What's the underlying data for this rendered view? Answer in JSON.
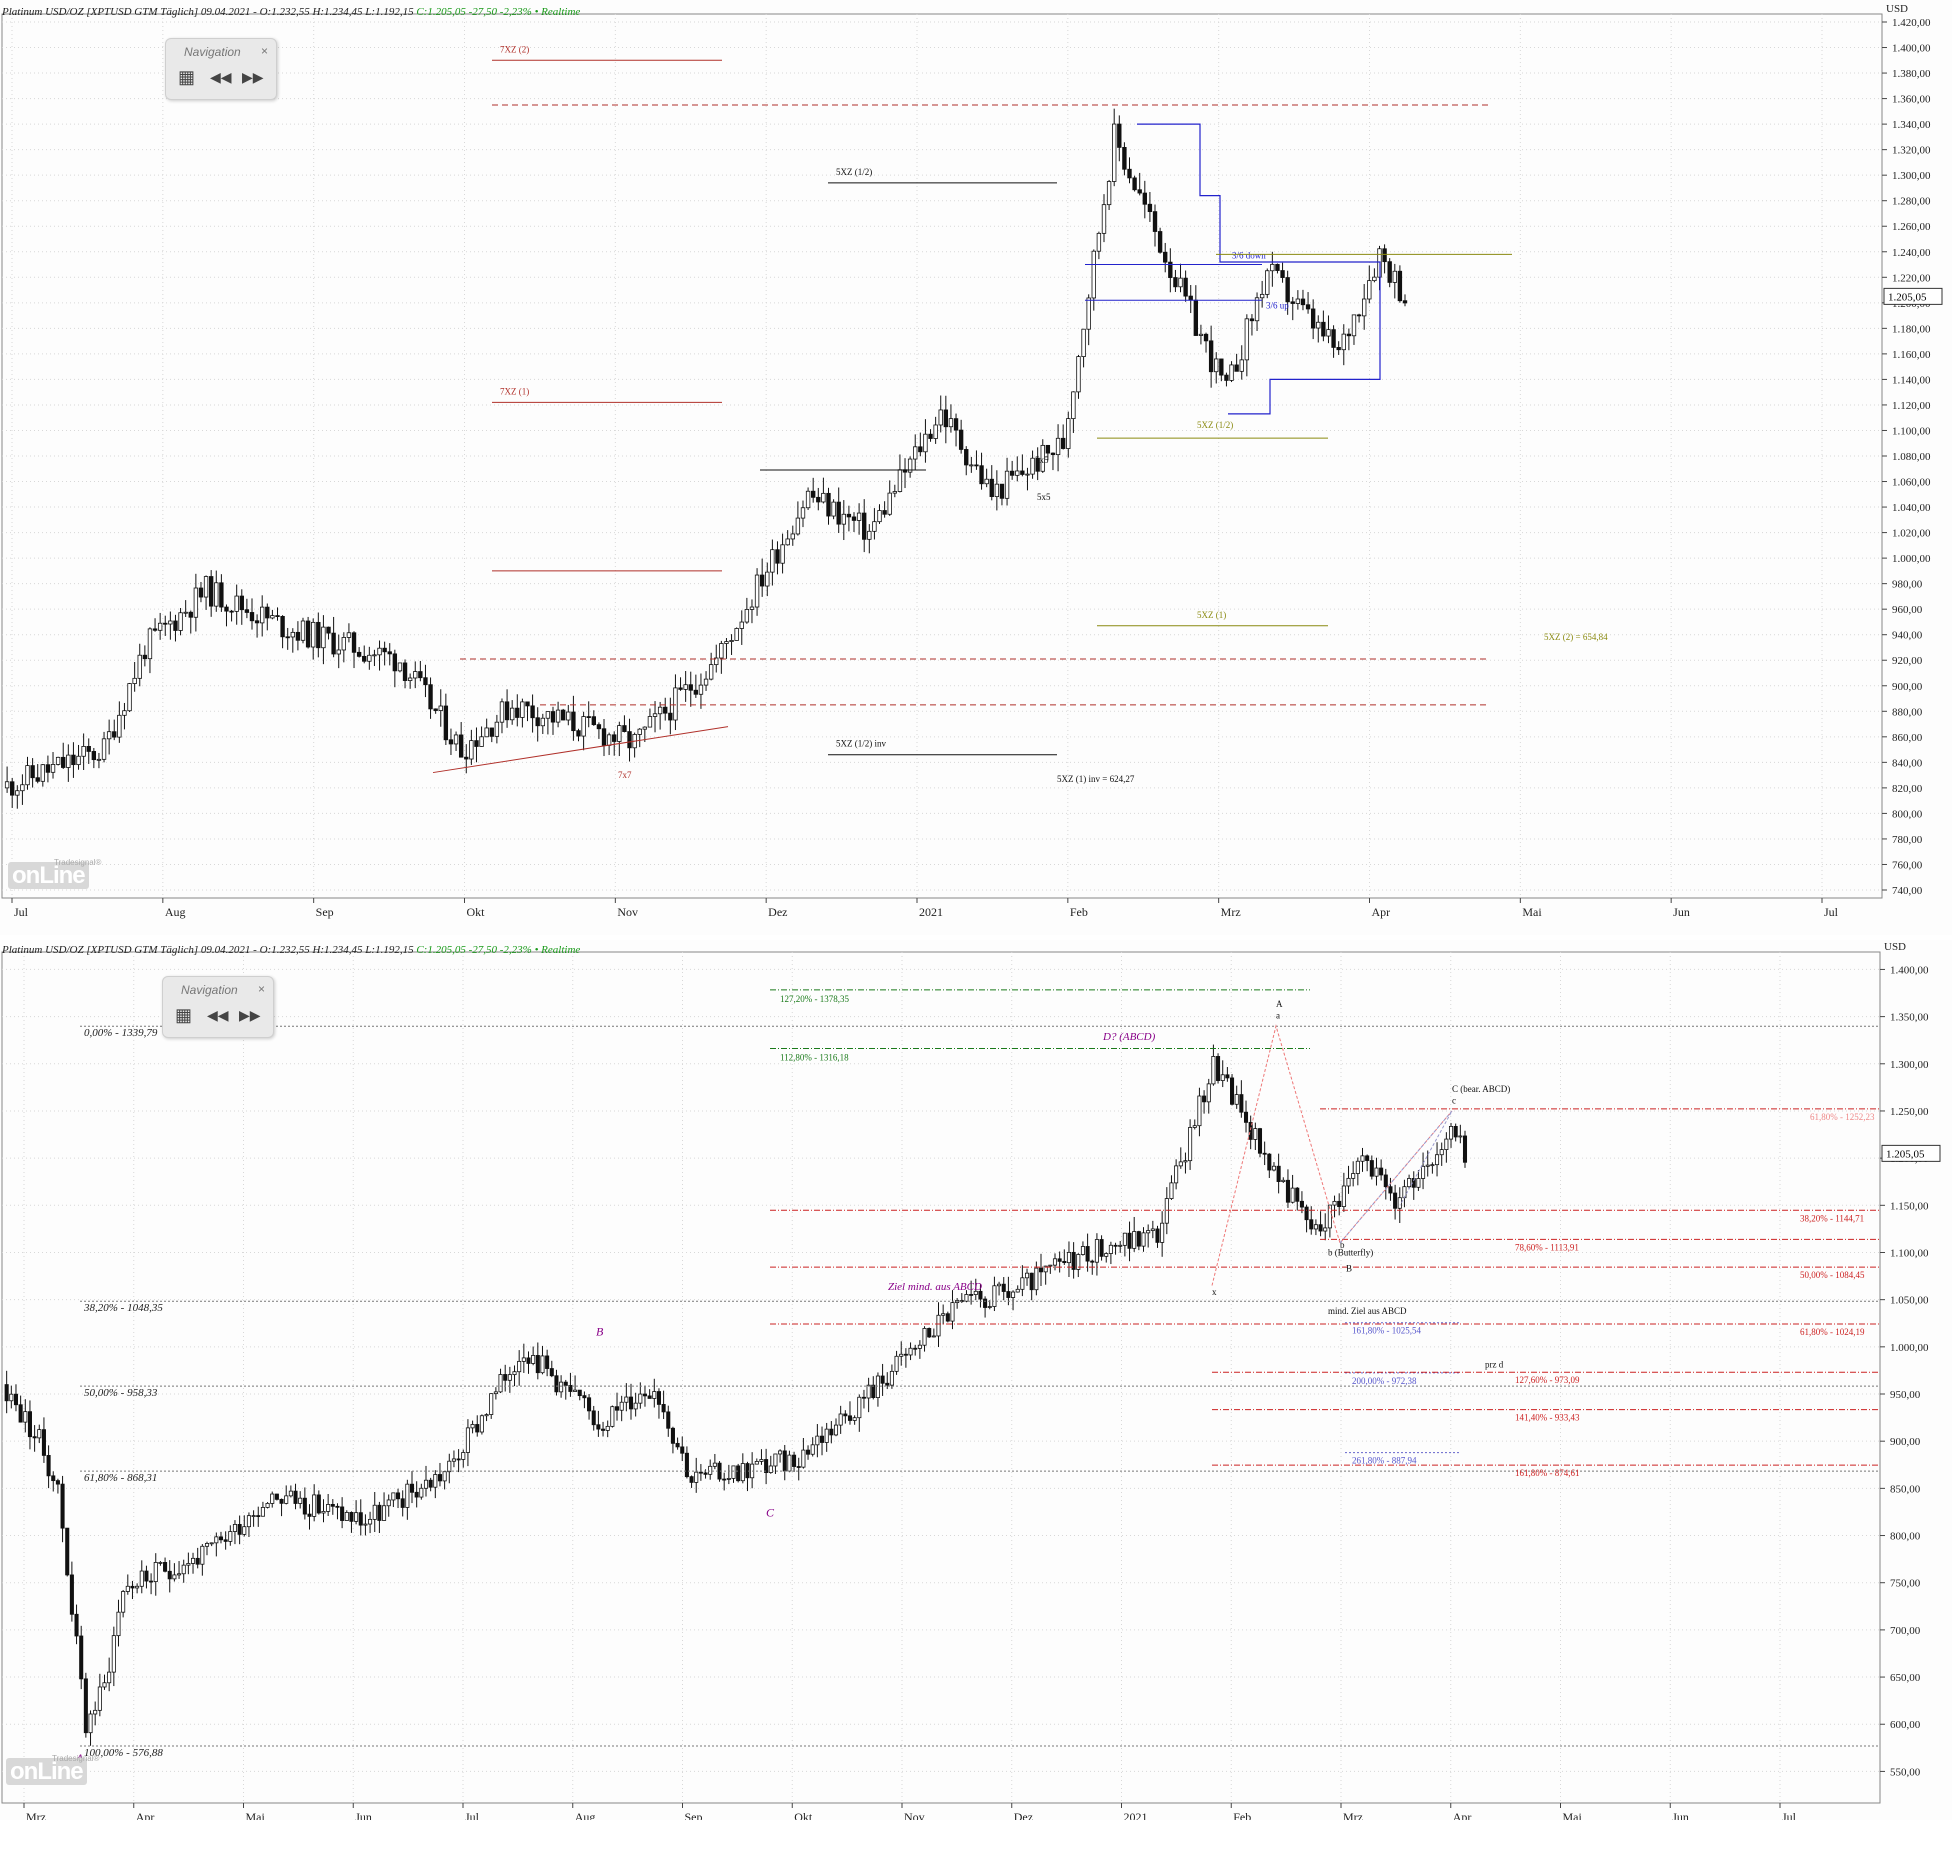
{
  "header": {
    "text": "Platinum USD/OZ [XPTUSD GTM Täglich] 09.04.2021 - O:1.232,55 H:1.234,45 L:1.192,15 ",
    "change": "C:1.205,05 -27,50 -2,23% • Realtime"
  },
  "navigation": {
    "title": "Navigation",
    "close": "×",
    "grid": "▦",
    "back": "◀◀",
    "forward": "▶▶"
  },
  "logo": {
    "main": "onLine",
    "small": "Tradesignal®"
  },
  "colors": {
    "up": "#ffffff",
    "down": "#111111",
    "red": "#b0302a",
    "blue": "#2222cc",
    "olive": "#8a8a10",
    "green": "#1a7a1a",
    "purple": "#880088"
  },
  "chart_data": [
    {
      "type": "candlestick",
      "title": "Platinum USD/OZ [XPTUSD GTM Täglich] 09.04.2021",
      "currency": "USD",
      "last_price": "1.205,05",
      "ylim": [
        740,
        1420
      ],
      "y_ticks": [
        "1.420,00",
        "1.400,00",
        "1.380,00",
        "1.360,00",
        "1.340,00",
        "1.320,00",
        "1.300,00",
        "1.280,00",
        "1.260,00",
        "1.240,00",
        "1.220,00",
        "1.200,00",
        "1.180,00",
        "1.160,00",
        "1.140,00",
        "1.120,00",
        "1.100,00",
        "1.080,00",
        "1.060,00",
        "1.040,00",
        "1.020,00",
        "1.000,00",
        "980,00",
        "960,00",
        "940,00",
        "920,00",
        "900,00",
        "880,00",
        "860,00",
        "840,00",
        "820,00",
        "800,00",
        "780,00",
        "760,00",
        "740,00"
      ],
      "x_ticks": [
        "Jul",
        "Aug",
        "Sep",
        "Okt",
        "Nov",
        "Dez",
        "2021",
        "Feb",
        "Mrz",
        "Apr",
        "Mai",
        "Jun",
        "Jul"
      ],
      "anchors": [
        {
          "t": 0,
          "p": 820
        },
        {
          "t": 20,
          "p": 850
        },
        {
          "t": 28,
          "p": 930
        },
        {
          "t": 40,
          "p": 975
        },
        {
          "t": 56,
          "p": 945
        },
        {
          "t": 78,
          "p": 920
        },
        {
          "t": 90,
          "p": 850
        },
        {
          "t": 100,
          "p": 885
        },
        {
          "t": 124,
          "p": 855
        },
        {
          "t": 140,
          "p": 920
        },
        {
          "t": 158,
          "p": 1050
        },
        {
          "t": 170,
          "p": 1020
        },
        {
          "t": 184,
          "p": 1115
        },
        {
          "t": 194,
          "p": 1050
        },
        {
          "t": 208,
          "p": 1090
        },
        {
          "t": 218,
          "p": 1330
        },
        {
          "t": 232,
          "p": 1200
        },
        {
          "t": 240,
          "p": 1130
        },
        {
          "t": 248,
          "p": 1225
        },
        {
          "t": 262,
          "p": 1160
        },
        {
          "t": 270,
          "p": 1240
        },
        {
          "t": 275,
          "p": 1205
        }
      ],
      "annotations": [
        {
          "text": "7XZ (2)",
          "price": 1390,
          "x0": 492,
          "x1": 722,
          "style": "red-solid"
        },
        {
          "text": "",
          "price": 1355,
          "x0": 492,
          "x1": 1490,
          "style": "red-dashed"
        },
        {
          "text": "5XZ (1/2)",
          "price": 1294,
          "x0": 828,
          "x1": 1057,
          "style": "black-solid"
        },
        {
          "text": "3/6 down",
          "price": 1230,
          "x0": 1085,
          "x1": 1262,
          "style": "blue-solid"
        },
        {
          "text": "3/6 up",
          "price": 1202,
          "x0": 1085,
          "x1": 1262,
          "style": "blue-solid"
        },
        {
          "text": "7XZ (1)",
          "price": 1122,
          "x0": 492,
          "x1": 722,
          "style": "red-solid"
        },
        {
          "text": "5XZ (1/2)",
          "price": 1094,
          "x0": 1097,
          "x1": 1328,
          "style": "olive-solid"
        },
        {
          "text": "5x5",
          "price": 1069,
          "x0": 760,
          "x1": 926,
          "style": "black-solid"
        },
        {
          "text": "",
          "price": 990,
          "x0": 492,
          "x1": 722,
          "style": "red-solid"
        },
        {
          "text": "5XZ (1)",
          "price": 947,
          "x0": 1097,
          "x1": 1328,
          "style": "olive-solid"
        },
        {
          "text": "5XZ (2) = 654,84",
          "price": 0,
          "x0": 0,
          "x1": 0,
          "style": "label"
        },
        {
          "text": "",
          "price": 921,
          "x0": 460,
          "x1": 1490,
          "style": "red-dashed"
        },
        {
          "text": "",
          "price": 885,
          "x0": 540,
          "x1": 1490,
          "style": "red-dashed"
        },
        {
          "text": "5XZ (1/2) inv",
          "price": 846,
          "x0": 828,
          "x1": 1057,
          "style": "black-solid"
        },
        {
          "text": "5XZ (1) inv = 624,27",
          "price": 0,
          "x0": 0,
          "x1": 0,
          "style": "label"
        },
        {
          "text": "5x5",
          "price": 0,
          "x0": 0,
          "x1": 0,
          "style": "label"
        },
        {
          "text": "7x7",
          "price": 0,
          "x0": 0,
          "x1": 0,
          "style": "label"
        }
      ]
    },
    {
      "type": "candlestick",
      "title": "Platinum USD/OZ [XPTUSD GTM Täglich] 09.04.2021",
      "currency": "USD",
      "last_price": "1.205,05",
      "ylim": [
        525,
        1410
      ],
      "y_ticks": [
        "1.400,00",
        "1.350,00",
        "1.300,00",
        "1.250,00",
        "1.200,00",
        "1.150,00",
        "1.100,00",
        "1.050,00",
        "1.000,00",
        "950,00",
        "900,00",
        "850,00",
        "800,00",
        "750,00",
        "700,00",
        "650,00",
        "600,00",
        "550,00"
      ],
      "x_ticks": [
        "Mrz",
        "Apr",
        "Mai",
        "Jun",
        "Jul",
        "Aug",
        "Sep",
        "Okt",
        "Nov",
        "Dez",
        "2021",
        "Feb",
        "Mrz",
        "Apr",
        "Mai",
        "Jun",
        "Jul"
      ],
      "anchors": [
        {
          "t": 0,
          "p": 960
        },
        {
          "t": 8,
          "p": 900
        },
        {
          "t": 12,
          "p": 850
        },
        {
          "t": 18,
          "p": 600
        },
        {
          "t": 22,
          "p": 640
        },
        {
          "t": 26,
          "p": 745
        },
        {
          "t": 44,
          "p": 780
        },
        {
          "t": 58,
          "p": 845
        },
        {
          "t": 78,
          "p": 815
        },
        {
          "t": 96,
          "p": 870
        },
        {
          "t": 112,
          "p": 1000
        },
        {
          "t": 128,
          "p": 920
        },
        {
          "t": 140,
          "p": 960
        },
        {
          "t": 148,
          "p": 860
        },
        {
          "t": 170,
          "p": 880
        },
        {
          "t": 188,
          "p": 960
        },
        {
          "t": 204,
          "p": 1040
        },
        {
          "t": 218,
          "p": 1060
        },
        {
          "t": 232,
          "p": 1100
        },
        {
          "t": 248,
          "p": 1120
        },
        {
          "t": 260,
          "p": 1300
        },
        {
          "t": 274,
          "p": 1180
        },
        {
          "t": 282,
          "p": 1120
        },
        {
          "t": 292,
          "p": 1200
        },
        {
          "t": 300,
          "p": 1150
        },
        {
          "t": 310,
          "p": 1230
        },
        {
          "t": 314,
          "p": 1205
        }
      ],
      "fib_levels": [
        {
          "text": "0,00% - 1339,79",
          "price": 1339.79
        },
        {
          "text": "38,20% - 1048,35",
          "price": 1048.35
        },
        {
          "text": "50,00% - 958,33",
          "price": 958.33
        },
        {
          "text": "61,80% - 868,31",
          "price": 868.31
        },
        {
          "text": "100,00% - 576,88",
          "price": 576.88
        }
      ],
      "annotations": [
        {
          "text": "127,20% - 1378,35",
          "price": 1378.35
        },
        {
          "text": "112,80% - 1316,18",
          "price": 1316.18
        },
        {
          "text": "D? (ABCD)",
          "price": 1325
        },
        {
          "text": "C (bear. ABCD)",
          "price": 1270
        },
        {
          "text": "61,80% - 1252,23",
          "price": 1252.23
        },
        {
          "text": "38,20% - 1144,71",
          "price": 1144.71
        },
        {
          "text": "78,60% - 1113,91",
          "price": 1113.91
        },
        {
          "text": "b (Butterfly)",
          "price": 1097
        },
        {
          "text": "50,00% - 1084,45",
          "price": 1084.45
        },
        {
          "text": "Ziel mind. aus ABCD",
          "price": 1060
        },
        {
          "text": "mind. Ziel aus ABCD",
          "price": 1035
        },
        {
          "text": "161,80% - 1025,54",
          "price": 1025.54
        },
        {
          "text": "61,80% - 1024,19",
          "price": 1024.19
        },
        {
          "text": "prz d",
          "price": 978
        },
        {
          "text": "200,00% - 972,38",
          "price": 972.38
        },
        {
          "text": "127,60% - 973,09",
          "price": 973.09
        },
        {
          "text": "141,40% - 933,43",
          "price": 933.43
        },
        {
          "text": "261,80% - 887,94",
          "price": 887.94
        },
        {
          "text": "161,80% - 874,61",
          "price": 874.61
        }
      ],
      "pattern_labels": [
        "A",
        "B",
        "C",
        "A",
        "a",
        "b",
        "B",
        "c",
        "x"
      ]
    }
  ]
}
